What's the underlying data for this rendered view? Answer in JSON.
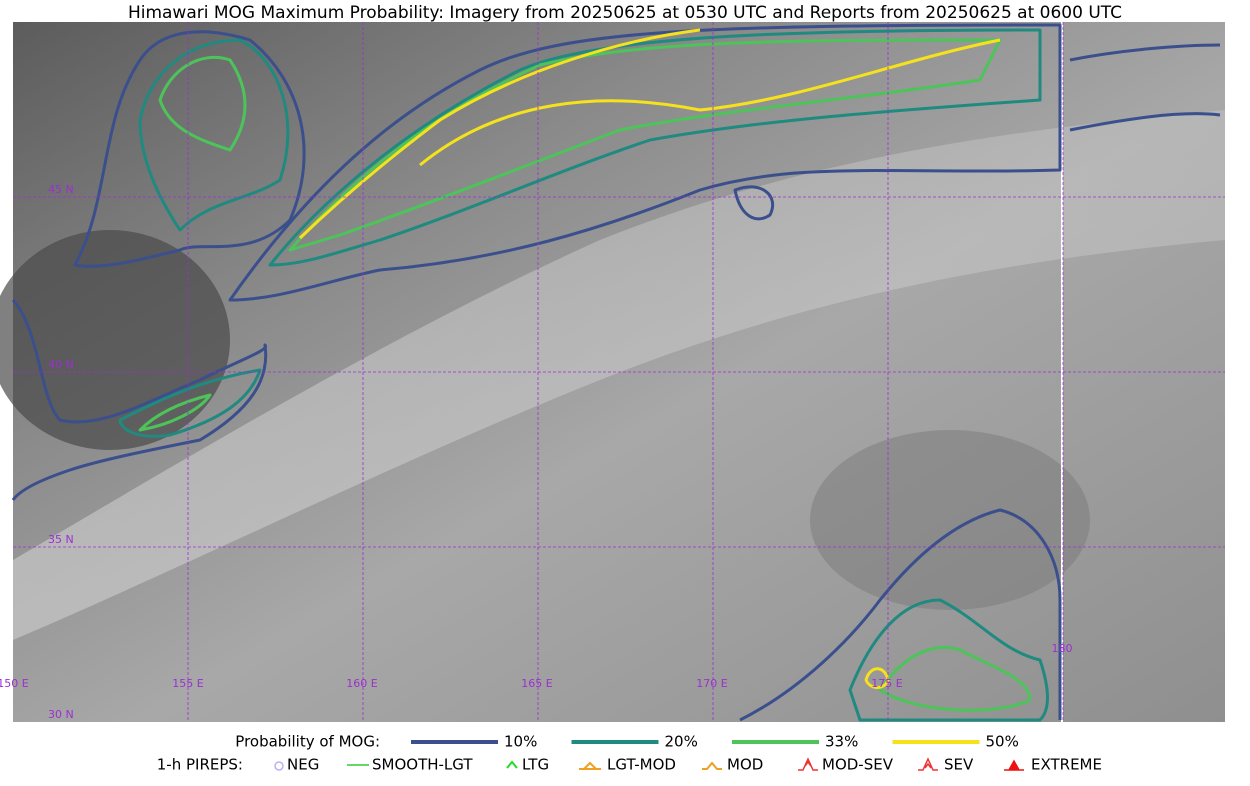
{
  "title": "Himawari MOG Maximum Probability: Imagery from 20250625 at 0530 UTC and Reports from 20250625 at 0600 UTC",
  "latitude_labels": [
    "45 N",
    "40 N",
    "35 N",
    "30 N"
  ],
  "longitude_labels": [
    "150 E",
    "155 E",
    "160 E",
    "165 E",
    "170 E",
    "175 E",
    "180"
  ],
  "legend": {
    "probability_label": "Probability of MOG:",
    "probability_levels": [
      {
        "label": "10%",
        "color": "#3b4f8c"
      },
      {
        "label": "20%",
        "color": "#1f8a80"
      },
      {
        "label": "33%",
        "color": "#4cc45a"
      },
      {
        "label": "50%",
        "color": "#f5e21c"
      }
    ],
    "pireps_label": "1-h PIREPS:",
    "pireps": [
      {
        "label": "NEG",
        "color": "#b9b2f0"
      },
      {
        "label": "SMOOTH-LGT",
        "color": "#33cc33"
      },
      {
        "label": "LTG",
        "color": "#22dd22"
      },
      {
        "label": "LGT-MOD",
        "color": "#f0a020"
      },
      {
        "label": "MOD",
        "color": "#f0a020"
      },
      {
        "label": "MOD-SEV",
        "color": "#ee3333"
      },
      {
        "label": "SEV",
        "color": "#ee3333"
      },
      {
        "label": "EXTREME",
        "color": "#ee1111"
      }
    ]
  }
}
